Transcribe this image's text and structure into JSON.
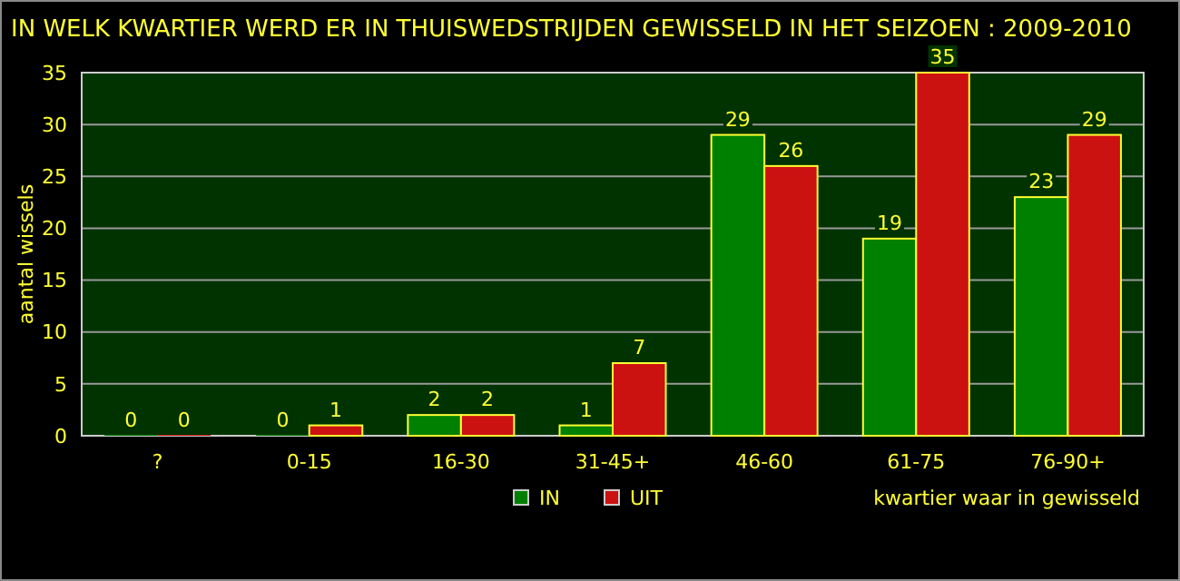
{
  "chart_data": {
    "type": "bar",
    "title": "IN WELK KWARTIER WERD ER IN THUISWEDSTRIJDEN GEWISSELD IN HET SEIZOEN : 2009-2010",
    "xlabel": "kwartier waar in gewisseld",
    "ylabel": "aantal wissels",
    "categories": [
      "?",
      "0-15",
      "16-30",
      "31-45+",
      "46-60",
      "61-75",
      "76-90+"
    ],
    "series": [
      {
        "name": "IN",
        "color": "#008000",
        "values": [
          0,
          0,
          2,
          1,
          29,
          19,
          23
        ]
      },
      {
        "name": "UIT",
        "color": "#cc1111",
        "values": [
          0,
          1,
          2,
          7,
          26,
          35,
          29
        ]
      }
    ],
    "ylim": [
      0,
      35
    ],
    "yticks": [
      0,
      5,
      10,
      15,
      20,
      25,
      30,
      35
    ],
    "grid": "y",
    "legend": "bottom",
    "data_labels": true
  }
}
